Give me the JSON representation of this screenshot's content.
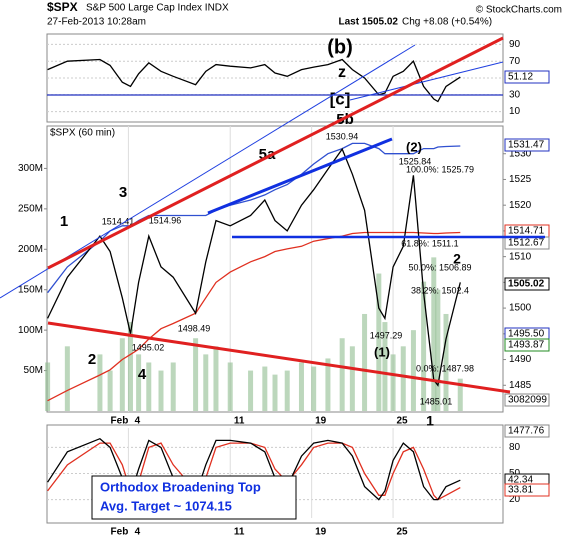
{
  "header": {
    "symbol": "$SPX",
    "name": "S&P 500 Large Cap Index INDX",
    "date": "27-Feb-2013 10:28am",
    "last": "Last 1505.02",
    "change": "Chg +8.08 (+0.54%)",
    "source": "© StockCharts.com"
  },
  "note": {
    "line1": "Orthodox Broadening Top",
    "line2": "Avg. Target ~ 1074.15"
  },
  "chart_data": [
    {
      "type": "line",
      "x": [
        -3.97,
        -3.0,
        -1.4,
        -0.9,
        -0.3,
        0.1,
        0.5,
        1.0,
        1.6,
        2.2,
        3.3,
        3.8,
        4.3,
        5.0,
        6.0,
        6.7,
        7.2,
        7.8,
        8.5,
        9.1,
        9.8,
        10.5,
        11.0,
        11.6,
        12.3,
        12.6,
        13.0,
        13.5,
        14.0,
        14.5,
        15.0,
        15.2,
        15.6,
        16.3
      ],
      "series": [
        {
          "color": "#000000",
          "values": [
            60,
            70,
            72,
            65,
            45,
            40,
            55,
            68,
            58,
            52,
            42,
            58,
            66,
            64,
            62,
            66,
            56,
            52,
            60,
            63,
            66,
            72,
            60,
            50,
            30,
            32,
            52,
            58,
            70,
            40,
            25,
            22,
            40,
            51.12
          ]
        }
      ],
      "xlim": [
        -4,
        18.4
      ],
      "ylim": [
        0,
        100
      ],
      "yticks": [
        10,
        30,
        50,
        70,
        90
      ],
      "grid": true,
      "right_labels": [
        "51.12"
      ]
    },
    {
      "type": "line",
      "title": "$SPX (60 min)",
      "x": [
        -3.97,
        -3.0,
        -1.4,
        -0.9,
        -0.3,
        0.1,
        0.5,
        1.0,
        1.6,
        2.2,
        3.3,
        3.8,
        4.3,
        5.0,
        6.0,
        6.7,
        7.2,
        7.8,
        8.5,
        9.1,
        9.8,
        10.5,
        11.0,
        11.6,
        12.3,
        12.6,
        13.0,
        13.5,
        14.0,
        14.5,
        15.0,
        15.2,
        15.6,
        16.3
      ],
      "series": [
        {
          "type": "bar",
          "axis": "y2",
          "color": "#8fbc8f",
          "values": [
            60000000,
            80000000,
            70000000,
            50000000,
            90000000,
            110000000,
            70000000,
            60000000,
            50000000,
            60000000,
            90000000,
            70000000,
            80000000,
            60000000,
            50000000,
            55000000,
            45000000,
            50000000,
            60000000,
            55000000,
            65000000,
            90000000,
            80000000,
            120000000,
            170000000,
            110000000,
            70000000,
            80000000,
            100000000,
            160000000,
            190000000,
            150000000,
            120000000,
            40000000
          ]
        },
        {
          "color": "#3050d0",
          "values": [
            1503,
            1508,
            1513,
            1515,
            1516,
            1516,
            1517,
            1518,
            1518,
            1518,
            1518,
            1518,
            1519,
            1520,
            1521,
            1522,
            1523,
            1524,
            1526,
            1528,
            1530,
            1531,
            1532,
            1532,
            1531,
            1530,
            1530,
            1530,
            1530,
            1531,
            1531,
            1531.3,
            1531.4,
            1531.5
          ]
        },
        {
          "color": "#e03020",
          "values": [
            1482,
            1484,
            1487,
            1488,
            1490,
            1491,
            1492,
            1494,
            1496,
            1497,
            1499,
            1502,
            1505,
            1507,
            1509,
            1510,
            1511,
            1511.5,
            1512,
            1513,
            1513.5,
            1514,
            1514.5,
            1514.7,
            1514.7,
            1514.7,
            1514.7,
            1514.7,
            1514.7,
            1514.6,
            1514.5,
            1514.5,
            1514.6,
            1514.7
          ]
        },
        {
          "color": "#000000",
          "values": [
            1498,
            1506,
            1514,
            1511,
            1502,
            1495,
            1505,
            1514,
            1508,
            1506,
            1499,
            1509,
            1517,
            1516,
            1518,
            1521,
            1517,
            1515,
            1520,
            1523,
            1527,
            1530.9,
            1526,
            1519,
            1500,
            1498,
            1508,
            1512,
            1525.8,
            1503,
            1486,
            1485,
            1494,
            1505
          ]
        }
      ],
      "xlim": [
        -4,
        18.4
      ],
      "ylim": [
        1480,
        1535
      ],
      "yticks": [
        1485,
        1490,
        1495,
        1500,
        1505,
        1510,
        1515,
        1520,
        1525,
        1530
      ],
      "y2lim": [
        0,
        350000000
      ],
      "y2ticks": [
        {
          "value": 50000000,
          "label": "50M"
        },
        {
          "value": 100000000,
          "label": "100M"
        },
        {
          "value": 150000000,
          "label": "150M"
        },
        {
          "value": 200000000,
          "label": "200M"
        },
        {
          "value": 250000000,
          "label": "250M"
        },
        {
          "value": 300000000,
          "label": "300M"
        }
      ],
      "xticks": [
        {
          "value": 0,
          "label": "4"
        },
        {
          "value": 5,
          "label": "11"
        },
        {
          "value": 9,
          "label": "19"
        },
        {
          "value": 13,
          "label": "25"
        }
      ],
      "month_label": "Feb",
      "right_labels": [
        "1531.47",
        "1514.71",
        "1512.67",
        "1505.02",
        "1495.50",
        "1493.87",
        "3082099"
      ],
      "annotations": [
        {
          "text": "(b)",
          "color": "#228b22"
        },
        {
          "text": "z",
          "color": "#e02020"
        },
        {
          "text": "[c]",
          "color": "#2030e0"
        },
        {
          "text": "5b",
          "color": "#e02020"
        },
        {
          "text": "5a",
          "color": "#e02020"
        },
        {
          "text": "3",
          "color": "#e02020"
        },
        {
          "text": "1",
          "color": "#e02020"
        },
        {
          "text": "2",
          "color": "#e02020"
        },
        {
          "text": "4",
          "color": "#e02020"
        },
        {
          "text": "(2)",
          "color": "#000000"
        },
        {
          "text": "(1)",
          "color": "#000000"
        },
        {
          "text": "2",
          "color": "#8020c0"
        },
        {
          "text": "1",
          "color": "#8020c0"
        },
        {
          "text": "1530.94",
          "color": "#000000"
        },
        {
          "text": "1525.84",
          "color": "#000000"
        },
        {
          "text": "1514.41",
          "color": "#000000"
        },
        {
          "text": "1514.96",
          "color": "#000000"
        },
        {
          "text": "1498.49",
          "color": "#000000"
        },
        {
          "text": "1495.02",
          "color": "#000000"
        },
        {
          "text": "1497.29",
          "color": "#000000"
        },
        {
          "text": "1485.01",
          "color": "#000000"
        },
        {
          "text": "100.0%: 1525.79",
          "color": "#707070"
        },
        {
          "text": "61.8%: 1511.1",
          "color": "#707070"
        },
        {
          "text": "50.0%: 1506.89",
          "color": "#707070"
        },
        {
          "text": "38.2%: 1502.4",
          "color": "#707070"
        },
        {
          "text": "0.0%: 1487.98",
          "color": "#707070"
        }
      ]
    },
    {
      "type": "line",
      "x": [
        -3.97,
        -3.0,
        -1.4,
        -0.9,
        -0.3,
        0.1,
        0.5,
        1.0,
        1.6,
        2.2,
        3.3,
        3.8,
        4.3,
        5.0,
        6.0,
        6.7,
        7.2,
        7.8,
        8.5,
        9.1,
        9.8,
        10.5,
        11.0,
        11.6,
        12.3,
        12.6,
        13.0,
        13.5,
        14.0,
        14.5,
        15.0,
        15.2,
        15.6,
        16.3
      ],
      "series": [
        {
          "color": "#e03020",
          "values": [
            30,
            60,
            85,
            85,
            60,
            30,
            40,
            80,
            85,
            60,
            30,
            45,
            80,
            85,
            85,
            80,
            55,
            40,
            60,
            80,
            85,
            85,
            80,
            50,
            25,
            25,
            50,
            75,
            80,
            55,
            25,
            20,
            25,
            33.81
          ]
        },
        {
          "color": "#000000",
          "values": [
            40,
            75,
            90,
            80,
            45,
            25,
            55,
            88,
            80,
            45,
            25,
            60,
            88,
            88,
            85,
            75,
            45,
            35,
            70,
            85,
            88,
            85,
            70,
            35,
            20,
            30,
            65,
            85,
            75,
            35,
            20,
            20,
            35,
            42.34
          ]
        }
      ],
      "xlim": [
        -4,
        18.4
      ],
      "ylim": [
        0,
        100
      ],
      "yticks": [
        20,
        50,
        80
      ],
      "grid": true,
      "xticks": [
        {
          "value": 0,
          "label": "4"
        },
        {
          "value": 5,
          "label": "11"
        },
        {
          "value": 9,
          "label": "19"
        },
        {
          "value": 13,
          "label": "25"
        }
      ],
      "month_label": "Feb",
      "right_labels": [
        "1477.76",
        "42.34",
        "33.81"
      ]
    }
  ]
}
